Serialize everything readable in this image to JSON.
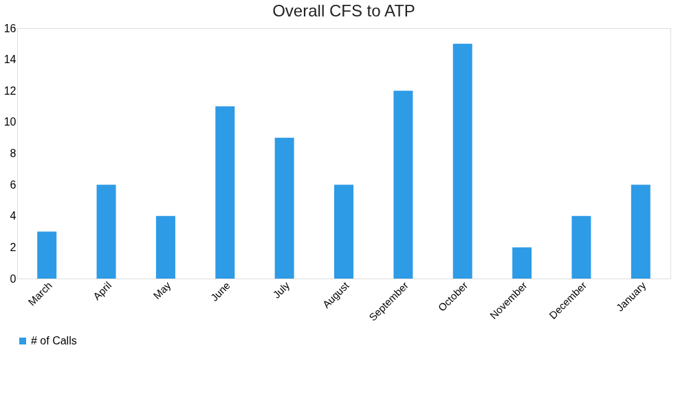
{
  "chart_data": {
    "type": "bar",
    "title": "Overall CFS to ATP",
    "categories": [
      "March",
      "April",
      "May",
      "June",
      "July",
      "August",
      "September",
      "October",
      "November",
      "December",
      "January"
    ],
    "series": [
      {
        "name": "# of Calls",
        "color": "#2e9be6",
        "values": [
          3,
          6,
          4,
          11,
          9,
          6,
          12,
          15,
          2,
          4,
          6
        ]
      }
    ],
    "ylim": [
      0,
      16
    ],
    "yticks": [
      0,
      2,
      4,
      6,
      8,
      10,
      12,
      14,
      16
    ],
    "grid": false,
    "legend": "bottom"
  }
}
